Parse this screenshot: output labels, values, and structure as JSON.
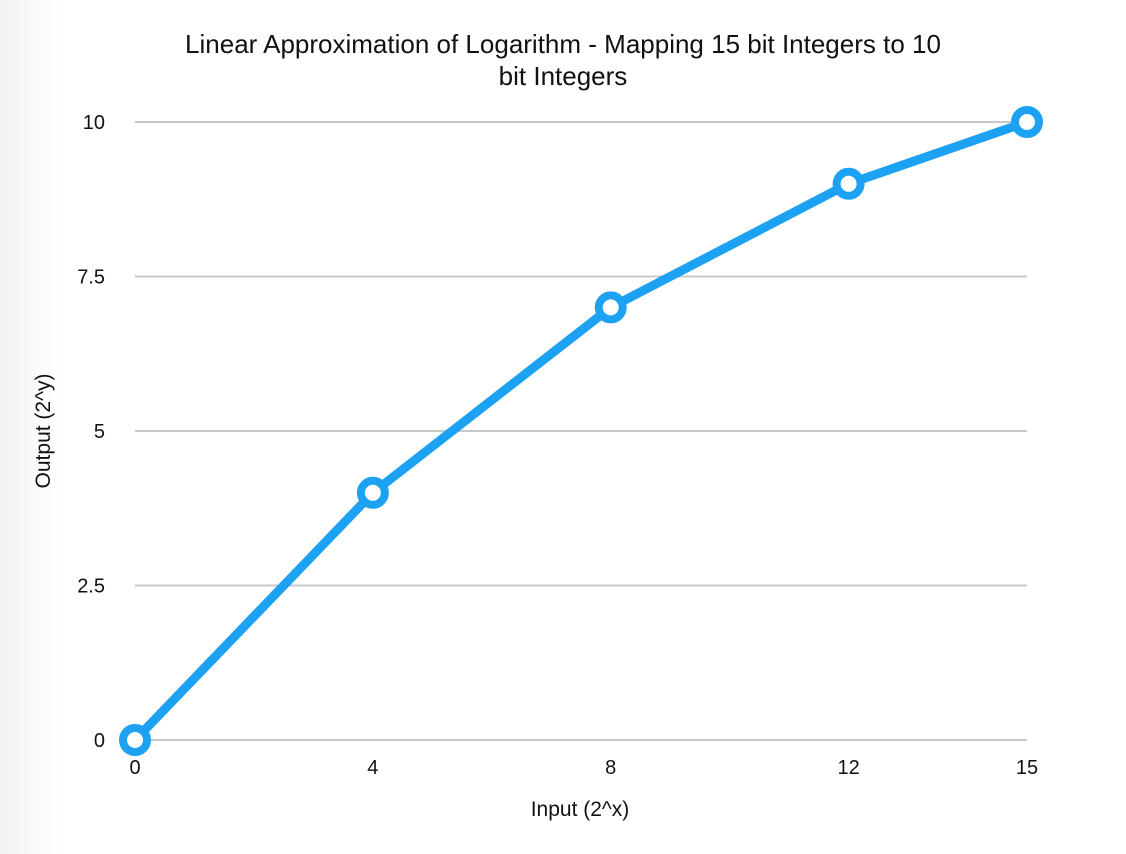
{
  "chart_data": {
    "type": "line",
    "title_lines": [
      "Linear Approximation of Logarithm - Mapping 15 bit Integers to 10",
      "bit Integers"
    ],
    "xlabel": "Input (2^x)",
    "ylabel": "Output (2^y)",
    "x": [
      0,
      4,
      8,
      12,
      15
    ],
    "series": [
      {
        "values": [
          0,
          4,
          7,
          9,
          10
        ]
      }
    ],
    "x_ticks": [
      "0",
      "4",
      "8",
      "12",
      "15"
    ],
    "y_ticks": [
      "0",
      "2.5",
      "5",
      "7.5",
      "10"
    ],
    "xlim": [
      0,
      15
    ],
    "ylim": [
      0,
      10
    ],
    "grid": true,
    "colors": {
      "line": "#1da1f2",
      "grid": "#c8c8c8",
      "marker_fill": "#ffffff"
    }
  }
}
